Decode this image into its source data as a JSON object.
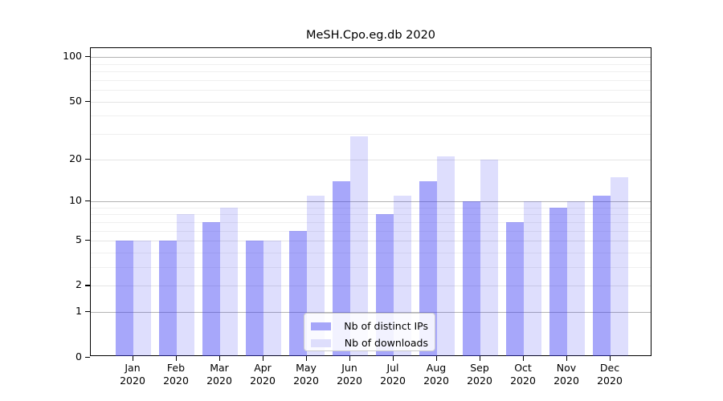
{
  "chart_title": "MeSH.Cpo.eg.db 2020",
  "legend": {
    "items": [
      {
        "label": "Nb of distinct IPs",
        "series": "distinct_ips"
      },
      {
        "label": "Nb of downloads",
        "series": "downloads"
      }
    ]
  },
  "colors": {
    "distinct_ips_bar": "rgba(60,60,245,0.45)",
    "downloads_bar": "rgba(60,60,245,0.17)",
    "distinct_ips_swatch": "#a6a6f9",
    "downloads_swatch": "#dedefc",
    "decade_gridline": "#b3b3b3",
    "sub_gridline": "#e4e4e4",
    "minor_gridline": "#efefef",
    "axis": "#000000"
  },
  "y_axis": {
    "tick_labels": [
      "100",
      "50",
      "20",
      "10",
      "5",
      "2",
      "1",
      "0"
    ],
    "tick_values": [
      100,
      50,
      20,
      10,
      5,
      2,
      1,
      0
    ],
    "decade_gridline_values": [
      1,
      10,
      100
    ],
    "sub_gridline_values": [
      2,
      5,
      20,
      50
    ],
    "minor_gridline_values": [
      3,
      4,
      6,
      7,
      8,
      9,
      30,
      40,
      60,
      70,
      80,
      90
    ]
  },
  "x_axis": {
    "month_labels": [
      "Jan",
      "Feb",
      "Mar",
      "Apr",
      "May",
      "Jun",
      "Jul",
      "Aug",
      "Sep",
      "Oct",
      "Nov",
      "Dec"
    ],
    "year_label": "2020"
  },
  "chart_data": {
    "type": "bar",
    "title": "MeSH.Cpo.eg.db 2020",
    "categories": [
      "Jan 2020",
      "Feb 2020",
      "Mar 2020",
      "Apr 2020",
      "May 2020",
      "Jun 2020",
      "Jul 2020",
      "Aug 2020",
      "Sep 2020",
      "Oct 2020",
      "Nov 2020",
      "Dec 2020"
    ],
    "series": [
      {
        "name": "Nb of distinct IPs",
        "values": [
          5,
          5,
          7,
          5,
          6,
          14,
          8,
          14,
          10,
          7,
          9,
          11
        ]
      },
      {
        "name": "Nb of downloads",
        "values": [
          5,
          8,
          9,
          5,
          11,
          29,
          11,
          21,
          20,
          10,
          10,
          15
        ]
      }
    ],
    "xlabel": "",
    "ylabel": "",
    "yscale": "log1p",
    "ylim": [
      0,
      115
    ],
    "y_ticks": [
      0,
      1,
      2,
      5,
      10,
      20,
      50,
      100
    ],
    "grid": true,
    "legend_position": "lower center inside"
  }
}
